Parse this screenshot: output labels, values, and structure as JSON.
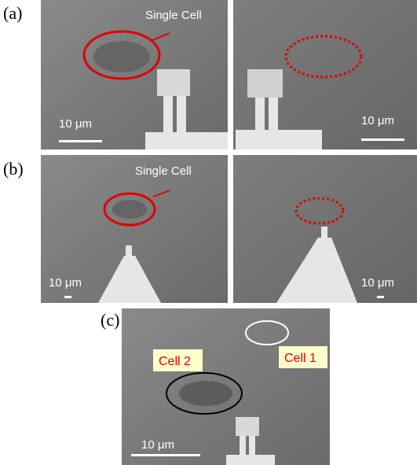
{
  "panels": [
    {
      "label": "(a)",
      "images": [
        {
          "annotation": "Single Cell",
          "scale_bar": "10 μm"
        },
        {
          "scale_bar": "10 μm"
        }
      ]
    },
    {
      "label": "(b)",
      "images": [
        {
          "annotation": "Single Cell",
          "scale_bar": "10 μm"
        },
        {
          "scale_bar": "10 μm"
        }
      ]
    },
    {
      "label": "(c)",
      "images": [
        {
          "scale_bar": "10 μm",
          "cells": [
            "Cell 2",
            "Cell 1"
          ]
        }
      ]
    }
  ]
}
